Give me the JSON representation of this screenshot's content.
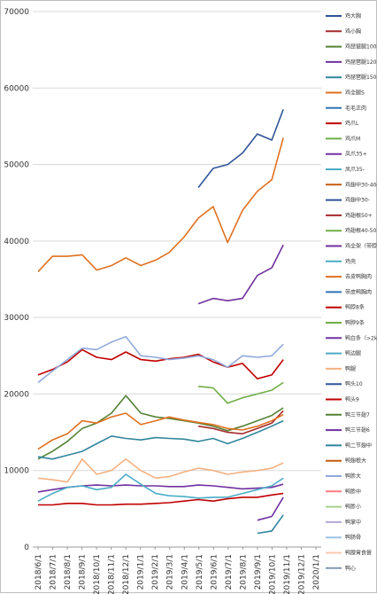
{
  "chart_data": {
    "type": "line",
    "title": "",
    "xlabel": "",
    "ylabel": "",
    "ylim": [
      0,
      70000
    ],
    "y_ticks": [
      "0",
      "10000",
      "20000",
      "30000",
      "40000",
      "50000",
      "60000",
      "70000"
    ],
    "x_ticks": [
      "2018/6/1",
      "2018/7/1",
      "2018/8/1",
      "2018/9/1",
      "2018/10/1",
      "2018/11/1",
      "2018/12/1",
      "2019/1/1",
      "2019/2/1",
      "2019/3/1",
      "2019/4/1",
      "2019/5/1",
      "2019/6/1",
      "2019/7/1",
      "2019/8/1",
      "2019/9/1",
      "2019/10/1",
      "2019/11/1",
      "2019/12/1",
      "2020/1/1"
    ],
    "grid": "horizontal",
    "legend_position": "right",
    "series": [
      {
        "name": "鸡大胸",
        "color": "#2f5597",
        "x": [
          "2019/5/1",
          "2019/6/1",
          "2019/7/1",
          "2019/8/1",
          "2019/9/1",
          "2019/10/1",
          "2019/10/25"
        ],
        "values": [
          47000,
          49500,
          50000,
          51500,
          54000,
          53200,
          57200
        ]
      },
      {
        "name": "鸡小胸",
        "color": "#a52a2a",
        "x": [
          "2019/5/1",
          "2019/6/1",
          "2019/7/1",
          "2019/8/1",
          "2019/9/1",
          "2019/10/1",
          "2019/10/25"
        ],
        "values": [
          15800,
          15500,
          15000,
          14800,
          15500,
          16200,
          17800
        ]
      },
      {
        "name": "鸡琵琶腿100-120g",
        "color": "#548235",
        "x": [
          "2018/6/1",
          "2018/7/1",
          "2018/8/1",
          "2018/9/1",
          "2018/10/1",
          "2018/11/1",
          "2018/12/1",
          "2019/1/1",
          "2019/2/1",
          "2019/3/1",
          "2019/4/1",
          "2019/5/1",
          "2019/6/1",
          "2019/7/1",
          "2019/8/1",
          "2019/9/1",
          "2019/10/1",
          "2019/10/25"
        ],
        "values": [
          11500,
          12500,
          13800,
          15500,
          16200,
          17500,
          19800,
          17500,
          17000,
          16800,
          16500,
          16200,
          15800,
          15200,
          15800,
          16500,
          17200,
          18200
        ]
      },
      {
        "name": "鸡琵琶腿120-150g",
        "color": "#7030a0",
        "x": [
          "2019/5/1",
          "2019/6/1",
          "2019/7/1",
          "2019/8/1",
          "2019/9/1",
          "2019/10/1",
          "2019/10/25"
        ],
        "values": [
          31800,
          32500,
          32200,
          32500,
          35500,
          36500,
          39500
        ]
      },
      {
        "name": "鸡琵琶腿150-150g",
        "color": "#31859c",
        "x": [
          "2018/6/1",
          "2018/7/1",
          "2018/8/1",
          "2018/9/1",
          "2018/10/1",
          "2018/11/1",
          "2018/12/1",
          "2019/1/1",
          "2019/2/1",
          "2019/3/1",
          "2019/4/1",
          "2019/5/1",
          "2019/6/1",
          "2019/7/1",
          "2019/8/1",
          "2019/9/1",
          "2019/10/1",
          "2019/10/25"
        ],
        "values": [
          11800,
          11500,
          12000,
          12500,
          13500,
          14500,
          14200,
          14000,
          14300,
          14200,
          14100,
          13800,
          14200,
          13500,
          14200,
          15000,
          15800,
          16500
        ]
      },
      {
        "name": "鸡全腿S",
        "color": "#e07020",
        "x": [
          "2018/6/1",
          "2018/7/1",
          "2018/8/1",
          "2018/9/1",
          "2018/10/1",
          "2018/11/1",
          "2018/12/1",
          "2019/1/1",
          "2019/2/1",
          "2019/3/1",
          "2019/4/1",
          "2019/5/1",
          "2019/6/1",
          "2019/7/1",
          "2019/8/1",
          "2019/9/1",
          "2019/10/1",
          "2019/10/25"
        ],
        "values": [
          36000,
          38000,
          38000,
          38200,
          36200,
          36800,
          37800,
          36800,
          37500,
          38500,
          40500,
          43000,
          44500,
          39800,
          44000,
          46500,
          48000,
          53500
        ]
      },
      {
        "name": "毛毛正肉",
        "color": "#2e75b6",
        "x": [],
        "values": []
      },
      {
        "name": "鸡爪L",
        "color": "#c00000",
        "x": [
          "2018/6/1",
          "2018/7/1",
          "2018/8/1",
          "2018/9/1",
          "2018/10/1",
          "2018/11/1",
          "2018/12/1",
          "2019/1/1",
          "2019/2/1",
          "2019/3/1",
          "2019/4/1",
          "2019/5/1",
          "2019/6/1",
          "2019/7/1",
          "2019/8/1",
          "2019/9/1",
          "2019/10/1",
          "2019/10/25"
        ],
        "values": [
          22500,
          23200,
          24200,
          25800,
          24800,
          24500,
          25500,
          24500,
          24300,
          24600,
          24800,
          25200,
          24200,
          23500,
          24000,
          22000,
          22500,
          24500
        ]
      },
      {
        "name": "鸡爪M",
        "color": "#70ad47",
        "x": [
          "2019/5/1",
          "2019/6/1",
          "2019/7/1",
          "2019/8/1",
          "2019/9/1",
          "2019/10/1",
          "2019/10/25"
        ],
        "values": [
          21000,
          20800,
          18800,
          19500,
          20000,
          20500,
          21500
        ]
      },
      {
        "name": "凤爪35+",
        "color": "#7030a0",
        "x": [],
        "values": []
      },
      {
        "name": "凤爪35-",
        "color": "#4bacc6",
        "x": [],
        "values": []
      },
      {
        "name": "鸡翅中30-40g",
        "color": "#c55a11",
        "x": [],
        "values": []
      },
      {
        "name": "鸡翅中30-",
        "color": "#2f5597",
        "x": [],
        "values": []
      },
      {
        "name": "鸡翅根50+",
        "color": "#a52a2a",
        "x": [],
        "values": []
      },
      {
        "name": "鸡翅根40-50",
        "color": "#70ad47",
        "x": [],
        "values": []
      },
      {
        "name": "鸡全架（带脖）",
        "color": "#7030a0",
        "x": [],
        "values": []
      },
      {
        "name": "鸡壳",
        "color": "#4bacc6",
        "x": [],
        "values": []
      },
      {
        "name": "去皮鸭胸肉",
        "color": "#e07020",
        "x": [
          "2018/6/1",
          "2018/7/1",
          "2018/8/1",
          "2018/9/1",
          "2018/10/1",
          "2018/11/1",
          "2018/12/1",
          "2019/1/1",
          "2019/2/1",
          "2019/3/1",
          "2019/4/1",
          "2019/5/1",
          "2019/6/1",
          "2019/7/1",
          "2019/8/1",
          "2019/9/1",
          "2019/10/1",
          "2019/10/25"
        ],
        "values": [
          12800,
          14000,
          14800,
          16500,
          16200,
          17000,
          17500,
          16000,
          16500,
          17000,
          16600,
          16300,
          16000,
          15500,
          15300,
          15800,
          16500,
          17300
        ]
      },
      {
        "name": "带皮鸭胸肉",
        "color": "#2e75b6",
        "x": [],
        "values": []
      },
      {
        "name": "鸭脖8条",
        "color": "#c00000",
        "x": [],
        "values": []
      },
      {
        "name": "鸭脖9条",
        "color": "#70ad47",
        "x": [],
        "values": []
      },
      {
        "name": "鸭白条（>2kg）",
        "color": "#7030a0",
        "x": [
          "2018/6/1",
          "2018/7/1",
          "2018/8/1",
          "2018/9/1",
          "2018/10/1",
          "2018/11/1",
          "2018/12/1",
          "2019/1/1",
          "2019/2/1",
          "2019/3/1",
          "2019/4/1",
          "2019/5/1",
          "2019/6/1",
          "2019/7/1",
          "2019/8/1",
          "2019/9/1",
          "2019/10/1",
          "2019/10/25"
        ],
        "values": [
          7200,
          7500,
          7800,
          8000,
          8100,
          8000,
          8100,
          8000,
          8000,
          7900,
          7900,
          8100,
          8000,
          7800,
          7600,
          7700,
          7800,
          8200
        ]
      },
      {
        "name": "鸭边腿",
        "color": "#4bacc6",
        "x": [
          "2018/6/1",
          "2018/7/1",
          "2018/8/1",
          "2018/9/1",
          "2018/10/1",
          "2018/11/1",
          "2018/12/1",
          "2019/1/1",
          "2019/2/1",
          "2019/3/1",
          "2019/4/1",
          "2019/5/1",
          "2019/6/1",
          "2019/7/1",
          "2019/8/1",
          "2019/9/1",
          "2019/10/1",
          "2019/10/25"
        ],
        "values": [
          6000,
          7000,
          7800,
          8000,
          7500,
          7800,
          9500,
          8200,
          7000,
          6700,
          6600,
          6400,
          6500,
          6500,
          7000,
          7500,
          8000,
          9000
        ]
      },
      {
        "name": "鸭腿",
        "color": "#f4b183",
        "x": [
          "2018/6/1",
          "2018/7/1",
          "2018/8/1",
          "2018/9/1",
          "2018/10/1",
          "2018/11/1",
          "2018/12/1",
          "2019/1/1",
          "2019/2/1",
          "2019/3/1",
          "2019/4/1",
          "2019/5/1",
          "2019/6/1",
          "2019/7/1",
          "2019/8/1",
          "2019/9/1",
          "2019/10/1",
          "2019/10/25"
        ],
        "values": [
          9000,
          8800,
          8500,
          11500,
          9500,
          10000,
          11500,
          10000,
          9000,
          9200,
          9800,
          10300,
          10000,
          9500,
          9800,
          10000,
          10300,
          11000
        ]
      },
      {
        "name": "鸭头10",
        "color": "#2f5597",
        "x": [],
        "values": []
      },
      {
        "name": "鸭头9",
        "color": "#c00000",
        "x": [
          "2018/6/1",
          "2018/7/1",
          "2018/8/1",
          "2018/9/1",
          "2018/10/1",
          "2018/11/1",
          "2018/12/1",
          "2019/1/1",
          "2019/2/1",
          "2019/3/1",
          "2019/4/1",
          "2019/5/1",
          "2019/6/1",
          "2019/7/1",
          "2019/8/1",
          "2019/9/1",
          "2019/10/1",
          "2019/10/25"
        ],
        "values": [
          5500,
          5500,
          5700,
          5700,
          5500,
          5500,
          5600,
          5600,
          5700,
          5800,
          6000,
          6200,
          6000,
          6300,
          6500,
          6500,
          6800,
          7000
        ]
      },
      {
        "name": "鸭三节翅7",
        "color": "#548235",
        "x": [],
        "values": []
      },
      {
        "name": "鸭三节翅6",
        "color": "#7030a0",
        "x": [
          "2019/9/1",
          "2019/10/1",
          "2019/10/25"
        ],
        "values": [
          3500,
          4000,
          6500
        ]
      },
      {
        "name": "鸭二节翅中",
        "color": "#31859c",
        "x": [
          "2019/9/1",
          "2019/10/1",
          "2019/10/25"
        ],
        "values": [
          1800,
          2100,
          4200
        ]
      },
      {
        "name": "鸭翅根大",
        "color": "#c55a11",
        "x": [],
        "values": []
      },
      {
        "name": "鸭胗大",
        "color": "#8faadc",
        "x": [
          "2018/6/1",
          "2018/7/1",
          "2018/8/1",
          "2018/9/1",
          "2018/10/1",
          "2018/11/1",
          "2018/12/1",
          "2019/1/1",
          "2019/2/1",
          "2019/3/1",
          "2019/4/1",
          "2019/5/1",
          "2019/6/1",
          "2019/7/1",
          "2019/8/1",
          "2019/9/1",
          "2019/10/1",
          "2019/10/25"
        ],
        "values": [
          21500,
          23000,
          24500,
          26000,
          25800,
          26800,
          27500,
          25000,
          24800,
          24500,
          24700,
          25000,
          24500,
          23500,
          25000,
          24800,
          25000,
          26500
        ]
      },
      {
        "name": "鸭胗中",
        "color": "#ff7c80",
        "x": [],
        "values": []
      },
      {
        "name": "鸭胗小",
        "color": "#a9d18e",
        "x": [],
        "values": []
      },
      {
        "name": "鸭掌中",
        "color": "#b4a7d6",
        "x": [],
        "values": []
      },
      {
        "name": "鸭肠骨",
        "color": "#9dc3e6",
        "x": [],
        "values": []
      },
      {
        "name": "鸭腺胃食管",
        "color": "#f8cbad",
        "x": [],
        "values": []
      },
      {
        "name": "鸭心",
        "color": "#8497b0",
        "x": [],
        "values": []
      }
    ]
  }
}
